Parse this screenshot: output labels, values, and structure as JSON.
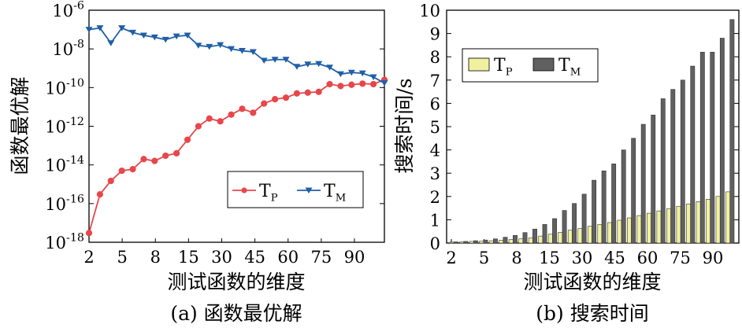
{
  "chart_data": [
    {
      "type": "line",
      "caption": "(a) 函数最优解",
      "xlabel": "测试函数的维度",
      "ylabel": "函数最优解",
      "yscale": "log",
      "ylim": [
        1e-18,
        1e-06
      ],
      "ytick_labels": [
        {
          "base": "10",
          "exp": "-18",
          "value": 1e-18
        },
        {
          "base": "10",
          "exp": "-16",
          "value": 1e-16
        },
        {
          "base": "10",
          "exp": "-14",
          "value": 1e-14
        },
        {
          "base": "10",
          "exp": "-12",
          "value": 1e-12
        },
        {
          "base": "10",
          "exp": "-10",
          "value": 1e-10
        },
        {
          "base": "10",
          "exp": "-8",
          "value": 1e-08
        },
        {
          "base": "10",
          "exp": "-6",
          "value": 1e-06
        }
      ],
      "xtick_labels": [
        "2",
        "5",
        "8",
        "15",
        "30",
        "45",
        "60",
        "75",
        "90"
      ],
      "legend": [
        {
          "main": "T",
          "sub": "P",
          "color": "#e8474a",
          "marker": "circle"
        },
        {
          "main": "T",
          "sub": "M",
          "color": "#1f5fa8",
          "marker": "triangle-down"
        }
      ],
      "legend_position": "lower-right",
      "series": [
        {
          "name": "TP",
          "color": "#e8474a",
          "values": [
            3e-18,
            3e-16,
            1.5e-15,
            5e-15,
            6e-15,
            2e-14,
            1.6e-14,
            3e-14,
            4e-14,
            2e-13,
            1e-12,
            2.5e-12,
            1.8e-12,
            4e-12,
            8e-12,
            5e-12,
            1.5e-11,
            2.5e-11,
            3e-11,
            5e-11,
            5.5e-11,
            6e-11,
            1.5e-10,
            1.2e-10,
            1.4e-10,
            1.6e-10,
            1.5e-10,
            2.5e-10
          ]
        },
        {
          "name": "TM",
          "color": "#1f5fa8",
          "values": [
            1e-07,
            1.2e-07,
            2e-08,
            1.2e-07,
            7e-08,
            5e-08,
            4e-08,
            3e-08,
            4.5e-08,
            5e-08,
            1.5e-08,
            1.3e-08,
            1.6e-08,
            1e-08,
            8e-09,
            7e-09,
            2.5e-09,
            2.8e-09,
            2.8e-09,
            1.2e-09,
            1.6e-09,
            1.7e-09,
            1.1e-09,
            5e-10,
            6e-10,
            5.5e-10,
            3.5e-10,
            1.7e-10
          ]
        }
      ]
    },
    {
      "type": "bar",
      "caption": "(b) 搜索时间",
      "xlabel": "测试函数的维度",
      "ylabel": "搜索时间/s",
      "ylim": [
        0,
        10
      ],
      "ytick_labels": [
        "0",
        "1",
        "2",
        "3",
        "4",
        "5",
        "6",
        "7",
        "8",
        "9",
        "10"
      ],
      "xtick_labels": [
        "2",
        "5",
        "8",
        "15",
        "30",
        "45",
        "60",
        "75",
        "90"
      ],
      "legend": [
        {
          "main": "T",
          "sub": "P",
          "color": "#f1f0a0"
        },
        {
          "main": "T",
          "sub": "M",
          "color": "#606060"
        }
      ],
      "legend_position": "top-left",
      "series": [
        {
          "name": "TP",
          "color": "#f1f0a0",
          "values": [
            0.04,
            0.05,
            0.07,
            0.08,
            0.1,
            0.12,
            0.15,
            0.18,
            0.22,
            0.3,
            0.38,
            0.46,
            0.55,
            0.62,
            0.72,
            0.8,
            0.88,
            0.98,
            1.08,
            1.18,
            1.28,
            1.38,
            1.48,
            1.58,
            1.68,
            1.78,
            1.88,
            2.0,
            2.2
          ]
        },
        {
          "name": "TM",
          "color": "#606060",
          "values": [
            0.05,
            0.07,
            0.1,
            0.13,
            0.18,
            0.25,
            0.33,
            0.45,
            0.6,
            0.8,
            1.05,
            1.4,
            1.7,
            2.1,
            2.7,
            3.1,
            3.4,
            4.0,
            4.5,
            5.1,
            5.5,
            6.2,
            6.6,
            7.0,
            7.6,
            8.2,
            8.2,
            8.8,
            9.6
          ]
        }
      ]
    }
  ]
}
